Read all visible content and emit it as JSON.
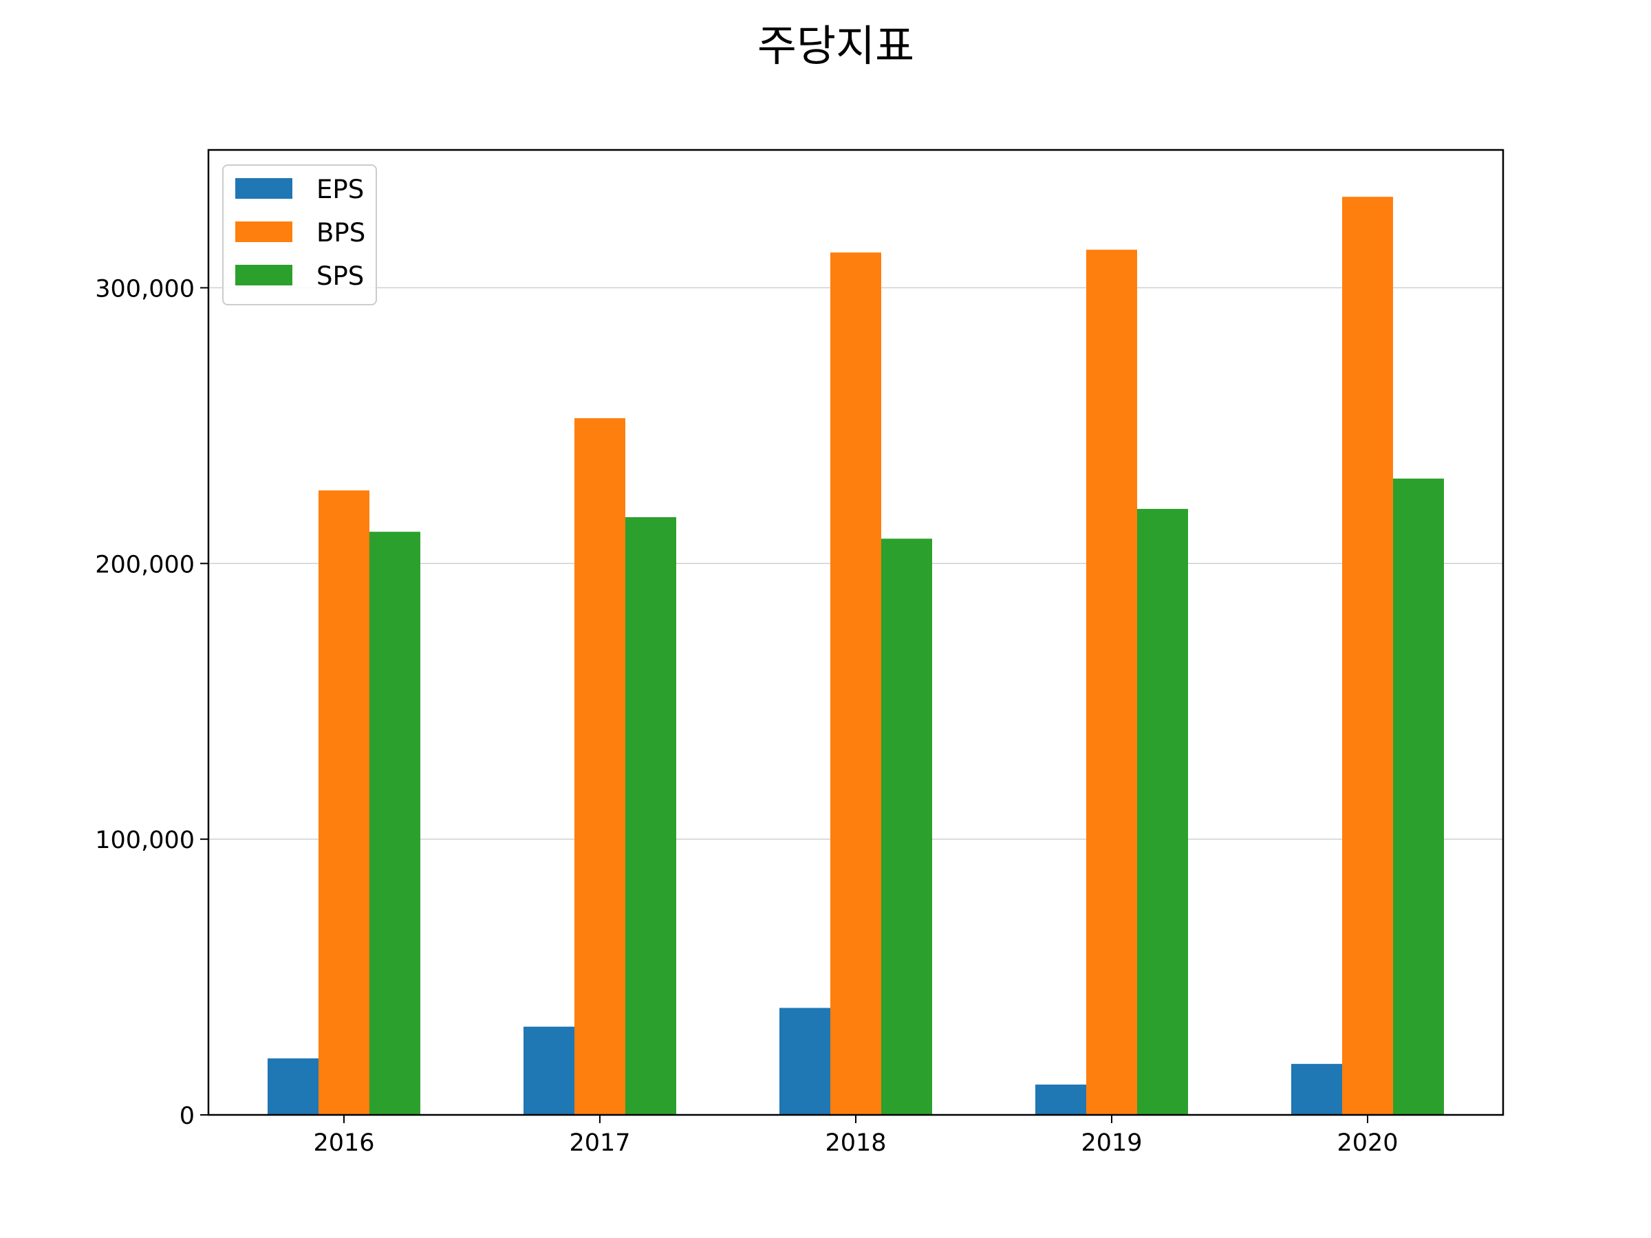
{
  "chart_data": {
    "type": "bar",
    "title": "주당지표",
    "xlabel": "",
    "ylabel": "",
    "categories": [
      "2016",
      "2017",
      "2018",
      "2019",
      "2020"
    ],
    "series": [
      {
        "name": "EPS",
        "color": "#1f77b4",
        "values": [
          20500,
          32000,
          38800,
          11000,
          18500
        ]
      },
      {
        "name": "BPS",
        "color": "#ff7f0e",
        "values": [
          226500,
          252700,
          312800,
          313800,
          333000
        ]
      },
      {
        "name": "SPS",
        "color": "#2ca02c",
        "values": [
          211500,
          216800,
          209000,
          219800,
          230800
        ]
      }
    ],
    "ylim": [
      0,
      350000
    ],
    "yticks": [
      0,
      100000,
      200000,
      300000
    ],
    "ytick_labels": [
      "0",
      "100,000",
      "200,000",
      "300,000"
    ],
    "grid": "horizontal",
    "legend": "upper-left"
  }
}
